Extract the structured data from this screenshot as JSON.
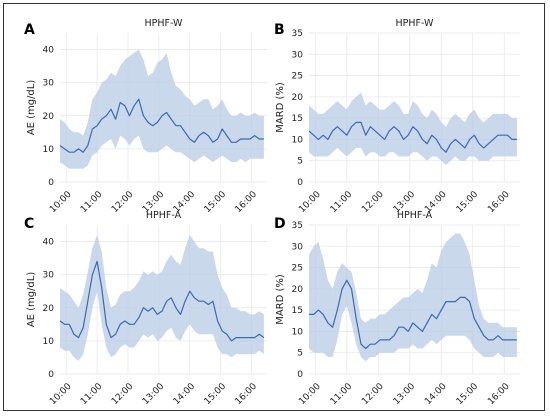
{
  "chart_data": [
    {
      "panel": "A",
      "type": "line",
      "title": "HPHF-W",
      "xlabel": "",
      "ylabel": "AE (mg/dL)",
      "xticks": [
        "10:00",
        "11:00",
        "12:00",
        "13:00",
        "14:00",
        "15:00",
        "16:00"
      ],
      "xlim": [
        9.8,
        16.5
      ],
      "ylim": [
        0,
        45
      ],
      "yticks": [
        0,
        10,
        20,
        30,
        40
      ],
      "grid": true,
      "colors": {
        "line": "#3a6ab0",
        "band": "#b8cbe6"
      },
      "x": [
        9.8,
        9.95,
        10.1,
        10.25,
        10.4,
        10.55,
        10.7,
        10.85,
        11.0,
        11.15,
        11.3,
        11.45,
        11.6,
        11.75,
        11.9,
        12.05,
        12.2,
        12.35,
        12.5,
        12.65,
        12.8,
        12.95,
        13.1,
        13.25,
        13.4,
        13.55,
        13.7,
        13.85,
        14.0,
        14.15,
        14.3,
        14.45,
        14.6,
        14.75,
        14.9,
        15.05,
        15.2,
        15.35,
        15.5,
        15.65,
        15.8,
        15.95,
        16.1,
        16.25,
        16.4
      ],
      "series": [
        {
          "values": [
            11,
            10,
            9,
            9,
            10,
            9,
            11,
            16,
            17,
            19,
            20,
            22,
            19,
            24,
            23,
            20,
            23,
            25,
            20,
            18,
            17,
            18,
            20,
            21,
            19,
            17,
            17,
            15,
            13,
            12,
            14,
            15,
            14,
            12,
            13,
            16,
            14,
            12,
            12,
            13,
            13,
            13,
            14,
            13,
            13
          ],
          "lower": [
            6,
            5,
            4,
            4,
            4,
            4,
            5,
            8,
            9,
            11,
            12,
            13,
            10,
            14,
            13,
            11,
            13,
            14,
            10,
            9,
            9,
            9,
            10,
            11,
            10,
            9,
            9,
            8,
            7,
            6,
            7,
            8,
            7,
            6,
            7,
            8,
            7,
            6,
            6,
            7,
            6,
            7,
            7,
            7,
            7
          ],
          "upper": [
            19,
            18,
            16,
            15,
            15,
            14,
            18,
            25,
            27,
            30,
            31,
            33,
            32,
            35,
            37,
            38,
            39,
            40,
            37,
            32,
            33,
            36,
            37,
            39,
            33,
            29,
            28,
            26,
            25,
            23,
            24,
            25,
            25,
            22,
            23,
            25,
            22,
            20,
            20,
            21,
            20,
            20,
            21,
            20,
            20
          ]
        }
      ]
    },
    {
      "panel": "B",
      "type": "line",
      "title": "HPHF-W",
      "xlabel": "",
      "ylabel": "MARD (%)",
      "xticks": [
        "10:00",
        "11:00",
        "12:00",
        "13:00",
        "14:00",
        "15:00",
        "16:00"
      ],
      "xlim": [
        9.8,
        16.5
      ],
      "ylim": [
        0,
        35
      ],
      "yticks": [
        0,
        5,
        10,
        15,
        20,
        25,
        30,
        35
      ],
      "grid": true,
      "colors": {
        "line": "#3a6ab0",
        "band": "#b8cbe6"
      },
      "x": [
        9.8,
        9.95,
        10.1,
        10.25,
        10.4,
        10.55,
        10.7,
        10.85,
        11.0,
        11.15,
        11.3,
        11.45,
        11.6,
        11.75,
        11.9,
        12.05,
        12.2,
        12.35,
        12.5,
        12.65,
        12.8,
        12.95,
        13.1,
        13.25,
        13.4,
        13.55,
        13.7,
        13.85,
        14.0,
        14.15,
        14.3,
        14.45,
        14.6,
        14.75,
        14.9,
        15.05,
        15.2,
        15.35,
        15.5,
        15.65,
        15.8,
        15.95,
        16.1,
        16.25,
        16.4
      ],
      "series": [
        {
          "values": [
            12,
            11,
            10,
            11,
            10,
            12,
            13,
            12,
            11,
            13,
            14,
            14,
            11,
            13,
            12,
            11,
            10,
            12,
            13,
            12,
            10,
            11,
            13,
            12,
            10,
            9,
            11,
            10,
            8,
            7,
            9,
            10,
            9,
            8,
            10,
            11,
            9,
            8,
            9,
            10,
            11,
            11,
            11,
            10,
            10
          ],
          "lower": [
            7,
            6,
            6,
            6,
            6,
            7,
            8,
            7,
            6,
            7,
            8,
            8,
            6,
            7,
            7,
            6,
            6,
            7,
            7,
            6,
            6,
            6,
            7,
            7,
            6,
            5,
            6,
            6,
            5,
            4,
            5,
            6,
            5,
            5,
            6,
            6,
            5,
            5,
            5,
            6,
            6,
            6,
            6,
            6,
            6
          ],
          "upper": [
            18,
            17,
            16,
            16,
            17,
            18,
            19,
            18,
            17,
            19,
            20,
            21,
            18,
            19,
            18,
            17,
            17,
            18,
            19,
            18,
            16,
            16,
            19,
            18,
            16,
            15,
            17,
            16,
            14,
            13,
            15,
            16,
            15,
            14,
            16,
            17,
            15,
            14,
            15,
            16,
            16,
            16,
            16,
            15,
            15
          ]
        }
      ]
    },
    {
      "panel": "C",
      "type": "line",
      "title": "HPHF-A",
      "xlabel": "",
      "ylabel": "AE (mg/dL)",
      "xticks": [
        "10:00",
        "11:00",
        "12:00",
        "13:00",
        "14:00",
        "15:00",
        "16:00"
      ],
      "xlim": [
        9.8,
        16.5
      ],
      "ylim": [
        0,
        45
      ],
      "yticks": [
        0,
        10,
        20,
        30,
        40
      ],
      "grid": true,
      "colors": {
        "line": "#3a6ab0",
        "band": "#b8cbe6"
      },
      "x": [
        9.8,
        9.95,
        10.1,
        10.25,
        10.4,
        10.55,
        10.7,
        10.85,
        11.0,
        11.15,
        11.3,
        11.45,
        11.6,
        11.75,
        11.9,
        12.05,
        12.2,
        12.35,
        12.5,
        12.65,
        12.8,
        12.95,
        13.1,
        13.25,
        13.4,
        13.55,
        13.7,
        13.85,
        14.0,
        14.15,
        14.3,
        14.45,
        14.6,
        14.75,
        14.9,
        15.05,
        15.2,
        15.35,
        15.5,
        15.65,
        15.8,
        15.95,
        16.1,
        16.25,
        16.4
      ],
      "series": [
        {
          "values": [
            16,
            15,
            15,
            12,
            11,
            14,
            22,
            30,
            34,
            26,
            15,
            11,
            12,
            15,
            16,
            15,
            15,
            17,
            20,
            19,
            20,
            18,
            19,
            22,
            23,
            20,
            18,
            22,
            25,
            23,
            22,
            22,
            21,
            22,
            16,
            13,
            12,
            10,
            11,
            11,
            11,
            11,
            11,
            12,
            11
          ],
          "lower": [
            8,
            7,
            7,
            5,
            4,
            6,
            12,
            20,
            25,
            15,
            8,
            5,
            6,
            8,
            9,
            8,
            8,
            10,
            12,
            11,
            12,
            10,
            11,
            13,
            14,
            11,
            10,
            13,
            15,
            13,
            12,
            12,
            12,
            12,
            8,
            6,
            6,
            5,
            6,
            6,
            6,
            6,
            6,
            7,
            6
          ],
          "upper": [
            26,
            25,
            24,
            22,
            20,
            24,
            31,
            38,
            42,
            37,
            26,
            20,
            21,
            24,
            25,
            25,
            26,
            28,
            31,
            30,
            31,
            30,
            31,
            34,
            36,
            34,
            33,
            38,
            42,
            40,
            38,
            38,
            37,
            37,
            30,
            26,
            24,
            20,
            20,
            19,
            19,
            18,
            18,
            19,
            18
          ]
        }
      ]
    },
    {
      "panel": "D",
      "type": "line",
      "title": "HPHF-A",
      "xlabel": "",
      "ylabel": "MARD (%)",
      "xticks": [
        "10:00",
        "11:00",
        "12:00",
        "13:00",
        "14:00",
        "15:00",
        "16:00"
      ],
      "xlim": [
        9.8,
        16.5
      ],
      "ylim": [
        0,
        35
      ],
      "yticks": [
        0,
        5,
        10,
        15,
        20,
        25,
        30,
        35
      ],
      "grid": true,
      "colors": {
        "line": "#3a6ab0",
        "band": "#b8cbe6"
      },
      "x": [
        9.8,
        9.95,
        10.1,
        10.25,
        10.4,
        10.55,
        10.7,
        10.85,
        11.0,
        11.15,
        11.3,
        11.45,
        11.6,
        11.75,
        11.9,
        12.05,
        12.2,
        12.35,
        12.5,
        12.65,
        12.8,
        12.95,
        13.1,
        13.25,
        13.4,
        13.55,
        13.7,
        13.85,
        14.0,
        14.15,
        14.3,
        14.45,
        14.6,
        14.75,
        14.9,
        15.05,
        15.2,
        15.35,
        15.5,
        15.65,
        15.8,
        15.95,
        16.1,
        16.25,
        16.4
      ],
      "series": [
        {
          "values": [
            14,
            14,
            15,
            14,
            12,
            11,
            15,
            20,
            22,
            20,
            13,
            7,
            6,
            7,
            7,
            8,
            8,
            8,
            9,
            11,
            11,
            10,
            12,
            11,
            10,
            12,
            14,
            13,
            15,
            17,
            17,
            17,
            18,
            18,
            17,
            13,
            11,
            9,
            8,
            8,
            9,
            8,
            8,
            8,
            8
          ],
          "lower": [
            6,
            5,
            5,
            5,
            4,
            4,
            8,
            14,
            16,
            12,
            7,
            4,
            3,
            4,
            4,
            5,
            5,
            5,
            5,
            6,
            6,
            6,
            7,
            6,
            6,
            7,
            8,
            7,
            8,
            9,
            9,
            9,
            9,
            9,
            8,
            6,
            5,
            4,
            4,
            4,
            5,
            4,
            4,
            4,
            4
          ],
          "upper": [
            28,
            30,
            31,
            27,
            22,
            20,
            24,
            26,
            25,
            24,
            19,
            13,
            12,
            13,
            13,
            14,
            14,
            15,
            16,
            17,
            18,
            18,
            19,
            20,
            19,
            22,
            26,
            25,
            29,
            31,
            32,
            33,
            33,
            31,
            28,
            22,
            16,
            13,
            12,
            12,
            12,
            11,
            11,
            11,
            11
          ]
        }
      ]
    }
  ]
}
